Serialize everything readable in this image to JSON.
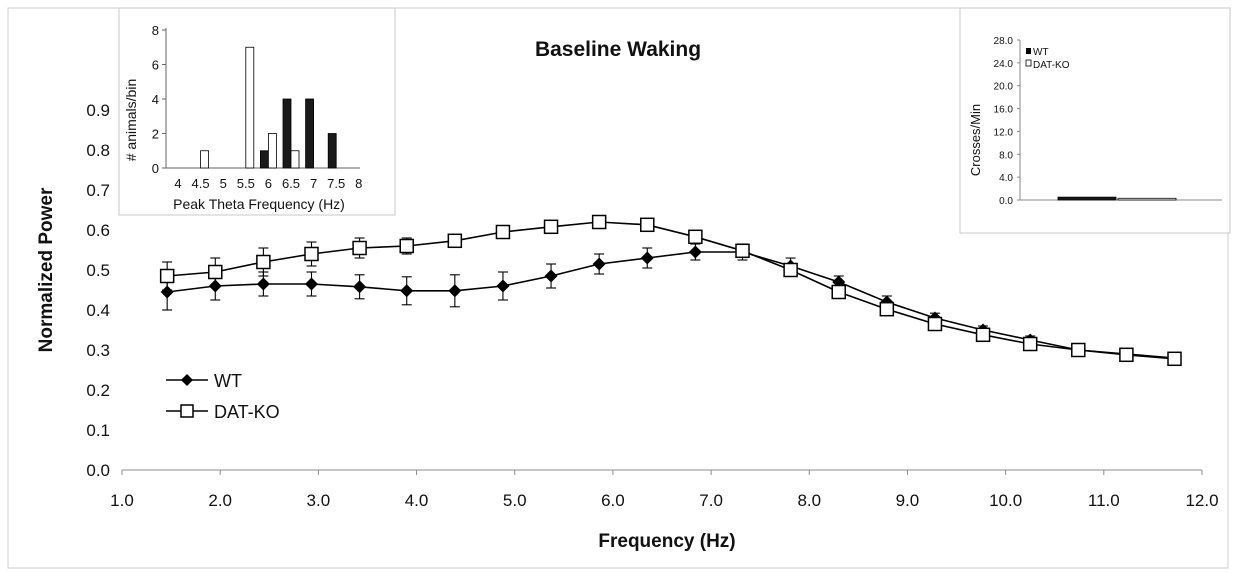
{
  "chart_data": [
    {
      "type": "line",
      "title": "Baseline Waking",
      "xlabel": "Frequency (Hz)",
      "ylabel": "Normalized Power",
      "xlim": [
        1.0,
        12.0
      ],
      "ylim": [
        0.0,
        0.9
      ],
      "x_ticks": [
        "1.0",
        "2.0",
        "3.0",
        "4.0",
        "5.0",
        "6.0",
        "7.0",
        "8.0",
        "9.0",
        "10.0",
        "11.0",
        "12.0"
      ],
      "y_ticks": [
        "0.0",
        "0.1",
        "0.2",
        "0.3",
        "0.4",
        "0.5",
        "0.6",
        "0.7",
        "0.8",
        "0.9"
      ],
      "legend": "lower-left",
      "x": [
        1.46,
        1.95,
        2.44,
        2.93,
        3.42,
        3.9,
        4.39,
        4.88,
        5.37,
        5.86,
        6.35,
        6.84,
        7.32,
        7.81,
        8.3,
        8.79,
        9.28,
        9.77,
        10.25,
        10.74,
        11.23,
        11.72
      ],
      "series": [
        {
          "name": "WT",
          "marker": "filled-diamond",
          "color": "#000000",
          "values": [
            0.445,
            0.46,
            0.465,
            0.465,
            0.458,
            0.448,
            0.448,
            0.46,
            0.485,
            0.515,
            0.53,
            0.545,
            0.545,
            0.51,
            0.47,
            0.42,
            0.38,
            0.35,
            0.325,
            0.3,
            0.29,
            0.28
          ],
          "error": [
            0.045,
            0.035,
            0.03,
            0.03,
            0.03,
            0.035,
            0.04,
            0.035,
            0.03,
            0.025,
            0.025,
            0.02,
            0.02,
            0.02,
            0.015,
            0.015,
            0.012,
            0.01,
            0.01,
            0.008,
            0.008,
            0.008
          ]
        },
        {
          "name": "DAT-KO",
          "marker": "open-square",
          "color": "#000000",
          "values": [
            0.485,
            0.495,
            0.52,
            0.54,
            0.555,
            0.56,
            0.573,
            0.595,
            0.608,
            0.62,
            0.613,
            0.583,
            0.548,
            0.5,
            0.445,
            0.402,
            0.365,
            0.338,
            0.315,
            0.3,
            0.288,
            0.278
          ],
          "error": [
            0.035,
            0.035,
            0.035,
            0.03,
            0.025,
            0.02,
            0.015,
            0.012,
            0.01,
            0.012,
            0.015,
            0.012,
            0.015,
            0.012,
            0.012,
            0.01,
            0.008,
            0.008,
            0.008,
            0.008,
            0.008,
            0.008
          ]
        }
      ]
    },
    {
      "type": "bar",
      "title": "",
      "xlabel": "Peak Theta Frequency (Hz)",
      "ylabel": "# animals/bin",
      "ylim": [
        0,
        8
      ],
      "categories": [
        "4",
        "4.5",
        "5",
        "5.5",
        "6",
        "6.5",
        "7",
        "7.5",
        "8"
      ],
      "y_ticks": [
        "0",
        "2",
        "4",
        "6",
        "8"
      ],
      "series": [
        {
          "name": "WT",
          "fill": "#1a1a1a",
          "values": [
            0,
            0,
            0,
            0,
            1,
            4,
            4,
            2,
            0
          ]
        },
        {
          "name": "DAT-KO",
          "fill": "#ffffff",
          "values": [
            0,
            1,
            0,
            7,
            2,
            1,
            0,
            0,
            0
          ]
        }
      ]
    },
    {
      "type": "bar",
      "title": "",
      "xlabel": "",
      "ylabel": "Crosses/Min",
      "ylim": [
        0.0,
        28.0
      ],
      "y_ticks": [
        "0.0",
        "4.0",
        "8.0",
        "12.0",
        "16.0",
        "20.0",
        "24.0",
        "28.0"
      ],
      "legend": "top-left",
      "series": [
        {
          "name": "WT",
          "fill": "#1a1a1a",
          "values": [
            0.5
          ]
        },
        {
          "name": "DAT-KO",
          "fill": "#ffffff",
          "values": [
            0.3
          ]
        }
      ]
    }
  ]
}
